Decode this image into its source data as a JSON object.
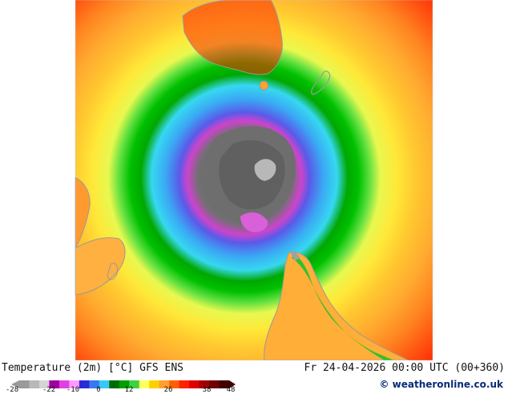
{
  "map": {
    "title": "Temperature (2m) [°C] GFS ENS",
    "valid_time": "Fr 24-04-2026 00:00 UTC (00+360)",
    "credit": "weatheronline.co.uk",
    "credit_symbol": "©"
  },
  "legend": {
    "tick_labels": [
      "-28",
      "-22",
      "-10",
      "0",
      "12",
      "26",
      "38",
      "48"
    ],
    "colors": [
      "#9a9a9a",
      "#b8b8b8",
      "#d4d4d4",
      "#a000a0",
      "#e040e0",
      "#ff9cff",
      "#2a2ad8",
      "#3a78f0",
      "#38c8f8",
      "#006c00",
      "#00a000",
      "#40d040",
      "#ffff60",
      "#ffd000",
      "#ffa030",
      "#ff6000",
      "#ff2000",
      "#e00000",
      "#a00000",
      "#700000",
      "#400000"
    ]
  }
}
